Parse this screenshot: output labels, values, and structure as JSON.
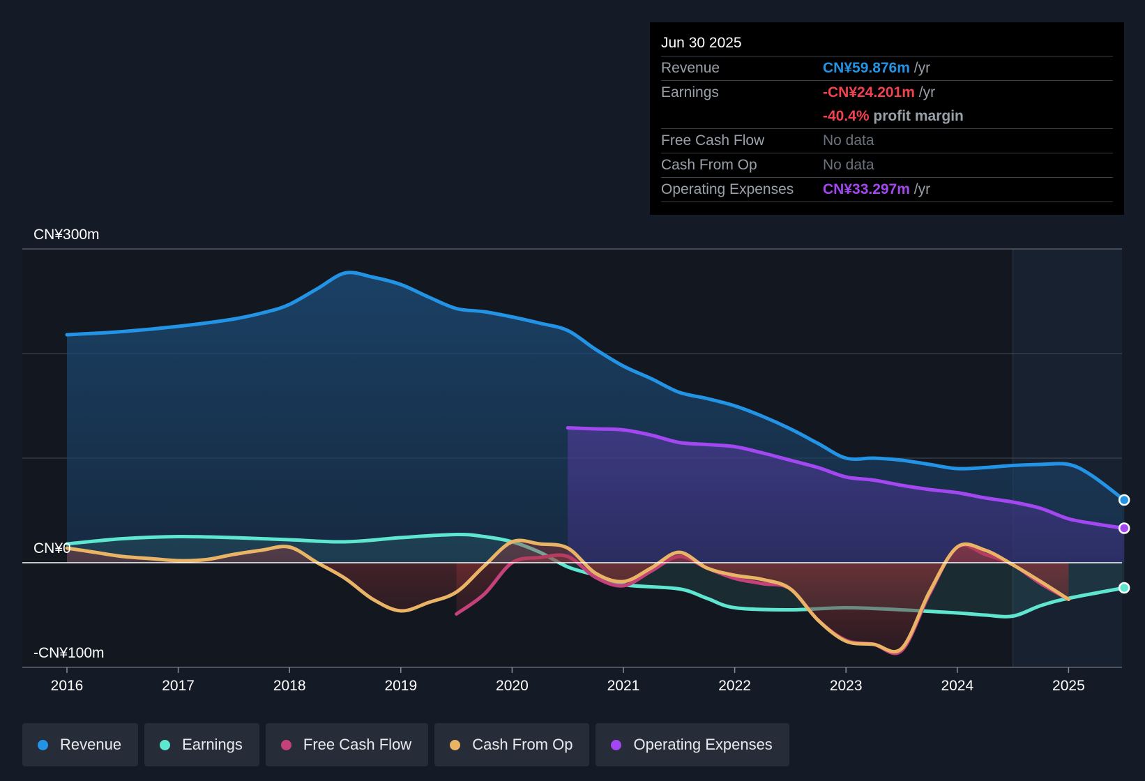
{
  "tooltip": {
    "date": "Jun 30 2025",
    "rows": [
      {
        "label": "Revenue",
        "value": "CN¥59.876m",
        "suffix": " /yr"
      },
      {
        "label": "Earnings",
        "value": "-CN¥24.201m",
        "suffix": " /yr"
      },
      {
        "label": "",
        "value": "-40.4%",
        "suffix": " profit margin"
      },
      {
        "label": "Free Cash Flow",
        "value": "No data",
        "suffix": ""
      },
      {
        "label": "Cash From Op",
        "value": "No data",
        "suffix": ""
      },
      {
        "label": "Operating Expenses",
        "value": "CN¥33.297m",
        "suffix": " /yr"
      }
    ]
  },
  "legend": [
    {
      "label": "Revenue",
      "color": "#2394e5"
    },
    {
      "label": "Earnings",
      "color": "#5ee6d0"
    },
    {
      "label": "Free Cash Flow",
      "color": "#c5417a"
    },
    {
      "label": "Cash From Op",
      "color": "#e9b465"
    },
    {
      "label": "Operating Expenses",
      "color": "#a347f0"
    }
  ],
  "chart_data": {
    "type": "line",
    "title": "",
    "ylim": [
      -100,
      300
    ],
    "xlim": [
      2015.6,
      2025.5
    ],
    "y_tick_labels": [
      {
        "value": 300,
        "label": "CN¥300m"
      },
      {
        "value": 0,
        "label": "CN¥0"
      },
      {
        "value": -100,
        "label": "-CN¥100m"
      }
    ],
    "gridlines": [
      300,
      200,
      100,
      0,
      -100
    ],
    "x_ticks": [
      2016,
      2017,
      2018,
      2019,
      2020,
      2021,
      2022,
      2023,
      2024,
      2025
    ],
    "forecast_start": 2024.5,
    "series": [
      {
        "name": "Revenue",
        "color": "#2394e5",
        "fill": true,
        "end_marker": true,
        "points": [
          [
            2016.0,
            218
          ],
          [
            2016.5,
            221
          ],
          [
            2017.0,
            226
          ],
          [
            2017.5,
            233
          ],
          [
            2017.8,
            240
          ],
          [
            2018.0,
            247
          ],
          [
            2018.25,
            262
          ],
          [
            2018.5,
            277
          ],
          [
            2018.75,
            273
          ],
          [
            2019.0,
            266
          ],
          [
            2019.25,
            254
          ],
          [
            2019.5,
            243
          ],
          [
            2019.75,
            240
          ],
          [
            2020.0,
            235
          ],
          [
            2020.25,
            229
          ],
          [
            2020.5,
            222
          ],
          [
            2020.75,
            204
          ],
          [
            2021.0,
            188
          ],
          [
            2021.25,
            176
          ],
          [
            2021.5,
            163
          ],
          [
            2021.75,
            157
          ],
          [
            2022.0,
            150
          ],
          [
            2022.25,
            140
          ],
          [
            2022.5,
            128
          ],
          [
            2022.75,
            114
          ],
          [
            2023.0,
            100
          ],
          [
            2023.25,
            100
          ],
          [
            2023.5,
            98
          ],
          [
            2023.75,
            94
          ],
          [
            2024.0,
            90
          ],
          [
            2024.25,
            91
          ],
          [
            2024.5,
            93
          ],
          [
            2024.75,
            94
          ],
          [
            2025.0,
            94
          ],
          [
            2025.2,
            84
          ],
          [
            2025.5,
            60
          ]
        ]
      },
      {
        "name": "Operating Expenses",
        "color": "#a347f0",
        "fill": true,
        "end_marker": true,
        "points": [
          [
            2020.5,
            129
          ],
          [
            2020.75,
            128
          ],
          [
            2021.0,
            127
          ],
          [
            2021.25,
            122
          ],
          [
            2021.5,
            115
          ],
          [
            2021.75,
            113
          ],
          [
            2022.0,
            111
          ],
          [
            2022.25,
            105
          ],
          [
            2022.5,
            98
          ],
          [
            2022.75,
            91
          ],
          [
            2023.0,
            82
          ],
          [
            2023.25,
            79
          ],
          [
            2023.5,
            74
          ],
          [
            2023.75,
            70
          ],
          [
            2024.0,
            67
          ],
          [
            2024.25,
            62
          ],
          [
            2024.5,
            58
          ],
          [
            2024.75,
            52
          ],
          [
            2025.0,
            42
          ],
          [
            2025.25,
            37
          ],
          [
            2025.5,
            33
          ]
        ]
      },
      {
        "name": "Earnings",
        "color": "#5ee6d0",
        "fill": true,
        "end_marker": true,
        "points": [
          [
            2016.0,
            18
          ],
          [
            2016.5,
            23
          ],
          [
            2017.0,
            25
          ],
          [
            2017.5,
            24
          ],
          [
            2018.0,
            22
          ],
          [
            2018.5,
            20
          ],
          [
            2019.0,
            24
          ],
          [
            2019.5,
            27
          ],
          [
            2019.75,
            25
          ],
          [
            2020.0,
            20
          ],
          [
            2020.25,
            10
          ],
          [
            2020.5,
            -4
          ],
          [
            2020.75,
            -12
          ],
          [
            2021.0,
            -21
          ],
          [
            2021.5,
            -25
          ],
          [
            2021.75,
            -34
          ],
          [
            2022.0,
            -43
          ],
          [
            2022.5,
            -45
          ],
          [
            2023.0,
            -43
          ],
          [
            2023.5,
            -45
          ],
          [
            2024.0,
            -48
          ],
          [
            2024.25,
            -50
          ],
          [
            2024.5,
            -51
          ],
          [
            2024.75,
            -41
          ],
          [
            2025.0,
            -34
          ],
          [
            2025.5,
            -24
          ]
        ]
      },
      {
        "name": "Free Cash Flow",
        "color": "#c5417a",
        "fill": true,
        "end_marker": false,
        "points": [
          [
            2019.5,
            -49
          ],
          [
            2019.75,
            -30
          ],
          [
            2020.0,
            0
          ],
          [
            2020.25,
            5
          ],
          [
            2020.5,
            6
          ],
          [
            2020.75,
            -14
          ],
          [
            2021.0,
            -22
          ],
          [
            2021.25,
            -8
          ],
          [
            2021.5,
            6
          ],
          [
            2021.75,
            -5
          ],
          [
            2022.0,
            -15
          ],
          [
            2022.25,
            -20
          ],
          [
            2022.5,
            -25
          ],
          [
            2022.75,
            -55
          ],
          [
            2023.0,
            -74
          ],
          [
            2023.25,
            -78
          ],
          [
            2023.5,
            -84
          ],
          [
            2023.75,
            -30
          ],
          [
            2024.0,
            15
          ],
          [
            2024.25,
            8
          ],
          [
            2024.5,
            -2
          ],
          [
            2024.75,
            -20
          ],
          [
            2025.0,
            -35
          ]
        ]
      },
      {
        "name": "Cash From Op",
        "color": "#e9b465",
        "fill": true,
        "end_marker": false,
        "points": [
          [
            2016.0,
            14
          ],
          [
            2016.25,
            10
          ],
          [
            2016.5,
            6
          ],
          [
            2016.75,
            4
          ],
          [
            2017.0,
            2
          ],
          [
            2017.25,
            3
          ],
          [
            2017.5,
            8
          ],
          [
            2017.75,
            12
          ],
          [
            2018.0,
            15
          ],
          [
            2018.25,
            0
          ],
          [
            2018.5,
            -15
          ],
          [
            2018.75,
            -35
          ],
          [
            2019.0,
            -46
          ],
          [
            2019.25,
            -38
          ],
          [
            2019.5,
            -28
          ],
          [
            2019.75,
            -3
          ],
          [
            2020.0,
            20
          ],
          [
            2020.25,
            18
          ],
          [
            2020.5,
            14
          ],
          [
            2020.75,
            -10
          ],
          [
            2021.0,
            -18
          ],
          [
            2021.25,
            -5
          ],
          [
            2021.5,
            10
          ],
          [
            2021.75,
            -5
          ],
          [
            2022.0,
            -12
          ],
          [
            2022.25,
            -16
          ],
          [
            2022.5,
            -25
          ],
          [
            2022.75,
            -55
          ],
          [
            2023.0,
            -75
          ],
          [
            2023.25,
            -78
          ],
          [
            2023.5,
            -82
          ],
          [
            2023.75,
            -28
          ],
          [
            2024.0,
            15
          ],
          [
            2024.25,
            12
          ],
          [
            2024.5,
            -2
          ],
          [
            2024.75,
            -18
          ],
          [
            2025.0,
            -35
          ]
        ]
      }
    ]
  }
}
